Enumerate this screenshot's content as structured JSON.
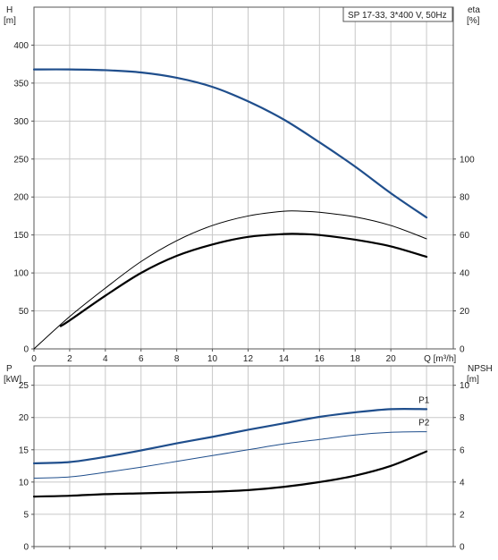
{
  "chart_data": [
    {
      "type": "line",
      "title": "SP 17-33, 3*400 V, 50Hz",
      "xlabel": "Q [m³/h]",
      "y_left_label": [
        "H",
        "[m]"
      ],
      "y_right_label": [
        "eta",
        "[%]"
      ],
      "xlim": [
        0,
        23.5
      ],
      "x_ticks": [
        0,
        2,
        4,
        6,
        8,
        10,
        12,
        14,
        16,
        18,
        20
      ],
      "ylim_left": [
        0,
        450
      ],
      "y_left_ticks": [
        0,
        50,
        100,
        150,
        200,
        250,
        300,
        350,
        400
      ],
      "ylim_right": [
        0,
        180
      ],
      "y_right_ticks": [
        0,
        20,
        40,
        60,
        80,
        100
      ],
      "grid": true,
      "series": [
        {
          "axis": "left",
          "color": "#1f4e8c",
          "width": 2.2,
          "x": [
            0,
            2,
            4,
            6,
            8,
            10,
            12,
            14,
            16,
            18,
            20,
            22
          ],
          "y": [
            368,
            368,
            367,
            364,
            357,
            345,
            326,
            302,
            272,
            240,
            205,
            173
          ]
        },
        {
          "axis": "right",
          "color": "#000000",
          "width": 1,
          "x": [
            0,
            2,
            4,
            6,
            8,
            10,
            12,
            14,
            15,
            16,
            18,
            20,
            22
          ],
          "y": [
            0,
            17,
            32,
            46,
            57,
            65,
            70,
            72.5,
            72.5,
            72,
            69.5,
            65,
            58
          ]
        },
        {
          "axis": "right",
          "color": "#000000",
          "width": 2.2,
          "x": [
            1.5,
            2,
            4,
            6,
            8,
            10,
            12,
            14,
            15,
            16,
            18,
            20,
            22
          ],
          "y": [
            12,
            15,
            28,
            40,
            49,
            55,
            59,
            60.5,
            60.5,
            60,
            57.5,
            54,
            48.5
          ]
        }
      ]
    },
    {
      "type": "line",
      "xlabel": "",
      "y_left_label": [
        "P",
        "[kW]"
      ],
      "y_right_label": [
        "NPSH",
        "[m]"
      ],
      "xlim": [
        0,
        23.5
      ],
      "ylim_left": [
        0,
        28
      ],
      "y_left_ticks": [
        0,
        5,
        10,
        15,
        20,
        25
      ],
      "ylim_right": [
        0,
        11.2
      ],
      "y_right_ticks": [
        0,
        2,
        4,
        6,
        8,
        10
      ],
      "grid": true,
      "series": [
        {
          "name": "P1",
          "axis": "left",
          "color": "#1f4e8c",
          "width": 2.2,
          "x": [
            0,
            2,
            4,
            6,
            8,
            10,
            12,
            14,
            16,
            18,
            20,
            22
          ],
          "y": [
            12.9,
            13.1,
            13.9,
            14.9,
            16.0,
            17.0,
            18.1,
            19.1,
            20.1,
            20.8,
            21.3,
            21.3
          ]
        },
        {
          "name": "P2",
          "axis": "left",
          "color": "#1f4e8c",
          "width": 1,
          "x": [
            0,
            2,
            4,
            6,
            8,
            10,
            12,
            14,
            16,
            18,
            20,
            22
          ],
          "y": [
            10.6,
            10.8,
            11.5,
            12.3,
            13.2,
            14.1,
            15.0,
            15.9,
            16.6,
            17.3,
            17.7,
            17.8
          ]
        },
        {
          "axis": "right",
          "color": "#000000",
          "width": 2.2,
          "x": [
            0,
            2,
            4,
            6,
            8,
            10,
            12,
            14,
            16,
            18,
            20,
            22
          ],
          "y": [
            3.1,
            3.15,
            3.25,
            3.3,
            3.35,
            3.4,
            3.5,
            3.7,
            4.0,
            4.4,
            5.0,
            5.9
          ]
        }
      ]
    }
  ]
}
